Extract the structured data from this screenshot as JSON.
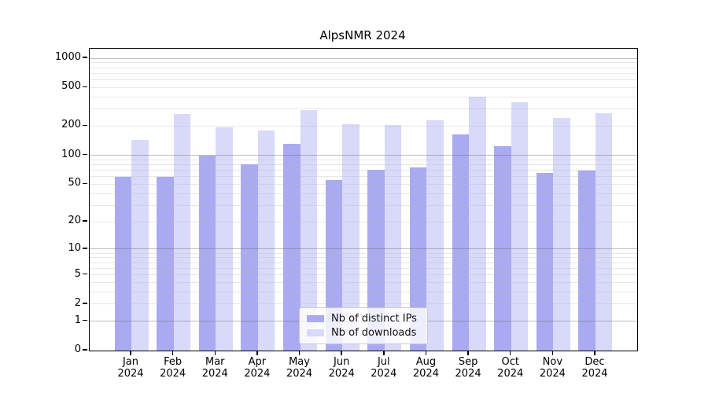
{
  "chart_data": {
    "type": "bar",
    "title": "AlpsNMR 2024",
    "categories": [
      "Jan",
      "Feb",
      "Mar",
      "Apr",
      "May",
      "Jun",
      "Jul",
      "Aug",
      "Sep",
      "Oct",
      "Nov",
      "Dec"
    ],
    "year_label": "2024",
    "series": [
      {
        "key": "ips",
        "name": "Nb of distinct IPs",
        "color": "#aaaaf2",
        "values": [
          60,
          60,
          100,
          80,
          131,
          55,
          71,
          75,
          165,
          125,
          66,
          69
        ]
      },
      {
        "key": "downloads",
        "name": "Nb of downloads",
        "color": "#d9d9fa",
        "values": [
          145,
          267,
          194,
          181,
          295,
          211,
          207,
          228,
          400,
          350,
          244,
          273
        ]
      }
    ],
    "yscale": "log1p",
    "yticks": [
      0,
      1,
      2,
      5,
      10,
      20,
      50,
      100,
      200,
      500,
      1000
    ],
    "ylim": [
      0,
      1250
    ],
    "grid": "both",
    "legend_position": "inside-lower-center"
  },
  "colors": {
    "axis": "#000000",
    "grid_major": "#6e6e6e",
    "grid_minor": "#b9b9b9",
    "legend_border": "#cccccc",
    "background": "#ffffff"
  }
}
